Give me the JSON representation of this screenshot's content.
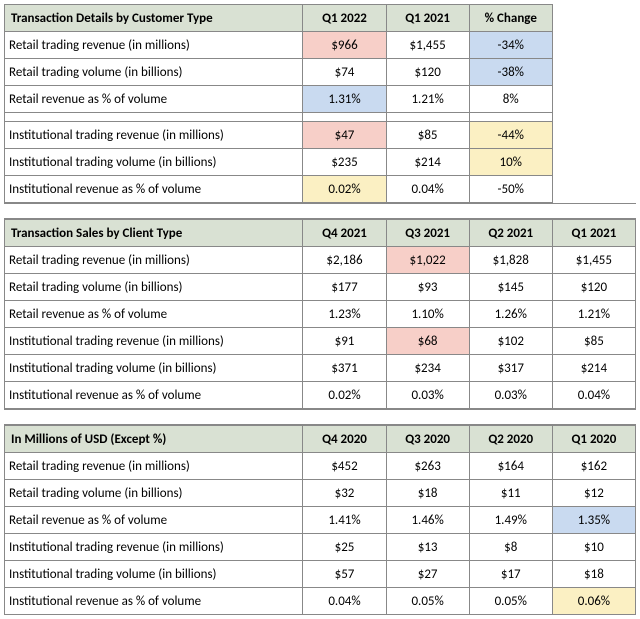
{
  "colors": {
    "header_bg": "#d9e1d3",
    "pink": "#f7cfc8",
    "blue": "#c9daf0",
    "yellow": "#fbf0c3",
    "border": "#888888"
  },
  "table1": {
    "header": [
      "Transaction Details by Customer Type",
      "Q1 2022",
      "Q1 2021",
      "% Change"
    ],
    "groups": [
      {
        "rows": [
          {
            "label": "Retail trading revenue (in millions)",
            "cells": [
              {
                "v": "$966",
                "hl": "pink"
              },
              {
                "v": "$1,455"
              },
              {
                "v": "-34%",
                "hl": "blue"
              }
            ]
          },
          {
            "label": "Retail trading volume (in billions)",
            "cells": [
              {
                "v": "$74"
              },
              {
                "v": "$120"
              },
              {
                "v": "-38%",
                "hl": "blue"
              }
            ]
          },
          {
            "label": "Retail revenue as % of volume",
            "cells": [
              {
                "v": "1.31%",
                "hl": "blue"
              },
              {
                "v": "1.21%"
              },
              {
                "v": "8%"
              }
            ]
          }
        ]
      },
      {
        "rows": [
          {
            "label": "Institutional trading revenue (in millions)",
            "cells": [
              {
                "v": "$47",
                "hl": "pink"
              },
              {
                "v": "$85"
              },
              {
                "v": "-44%",
                "hl": "yellow"
              }
            ]
          },
          {
            "label": "Institutional trading volume (in billions)",
            "cells": [
              {
                "v": "$235"
              },
              {
                "v": "$214"
              },
              {
                "v": "10%",
                "hl": "yellow"
              }
            ]
          },
          {
            "label": "Institutional revenue as % of volume",
            "cells": [
              {
                "v": "0.02%",
                "hl": "yellow"
              },
              {
                "v": "0.04%"
              },
              {
                "v": "-50%"
              }
            ]
          }
        ]
      }
    ]
  },
  "table2": {
    "header": [
      "Transaction Sales by Client Type",
      "Q4 2021",
      "Q3 2021",
      "Q2 2021",
      "Q1 2021"
    ],
    "rows": [
      {
        "label": "Retail trading revenue (in millions)",
        "cells": [
          {
            "v": "$2,186"
          },
          {
            "v": "$1,022",
            "hl": "pink"
          },
          {
            "v": "$1,828"
          },
          {
            "v": "$1,455"
          }
        ]
      },
      {
        "label": "Retail trading volume (in billions)",
        "cells": [
          {
            "v": "$177"
          },
          {
            "v": "$93"
          },
          {
            "v": "$145"
          },
          {
            "v": "$120"
          }
        ]
      },
      {
        "label": "Retail revenue as % of volume",
        "cells": [
          {
            "v": "1.23%"
          },
          {
            "v": "1.10%"
          },
          {
            "v": "1.26%"
          },
          {
            "v": "1.21%"
          }
        ]
      },
      {
        "label": "Institutional trading revenue (in millions)",
        "cells": [
          {
            "v": "$91"
          },
          {
            "v": "$68",
            "hl": "pink"
          },
          {
            "v": "$102"
          },
          {
            "v": "$85"
          }
        ]
      },
      {
        "label": "Institutional trading volume (in billions)",
        "cells": [
          {
            "v": "$371"
          },
          {
            "v": "$234"
          },
          {
            "v": "$317"
          },
          {
            "v": "$214"
          }
        ]
      },
      {
        "label": "Institutional revenue as % of volume",
        "cells": [
          {
            "v": "0.02%"
          },
          {
            "v": "0.03%"
          },
          {
            "v": "0.03%"
          },
          {
            "v": "0.04%"
          }
        ]
      }
    ]
  },
  "table3": {
    "header": [
      "In Millions of USD (Except %)",
      "Q4 2020",
      "Q3 2020",
      "Q2 2020",
      "Q1 2020"
    ],
    "rows": [
      {
        "label": "Retail trading revenue (in millions)",
        "cells": [
          {
            "v": "$452"
          },
          {
            "v": "$263"
          },
          {
            "v": "$164"
          },
          {
            "v": "$162"
          }
        ]
      },
      {
        "label": "Retail trading volume (in billions)",
        "cells": [
          {
            "v": "$32"
          },
          {
            "v": "$18"
          },
          {
            "v": "$11"
          },
          {
            "v": "$12"
          }
        ]
      },
      {
        "label": "Retail revenue as % of volume",
        "cells": [
          {
            "v": "1.41%"
          },
          {
            "v": "1.46%"
          },
          {
            "v": "1.49%"
          },
          {
            "v": "1.35%",
            "hl": "blue"
          }
        ]
      },
      {
        "label": "Institutional trading revenue (in millions)",
        "cells": [
          {
            "v": "$25"
          },
          {
            "v": "$13"
          },
          {
            "v": "$8"
          },
          {
            "v": "$10"
          }
        ]
      },
      {
        "label": "Institutional trading volume (in billions)",
        "cells": [
          {
            "v": "$57"
          },
          {
            "v": "$27"
          },
          {
            "v": "$17"
          },
          {
            "v": "$18"
          }
        ]
      },
      {
        "label": "Institutional revenue as % of volume",
        "cells": [
          {
            "v": "0.04%"
          },
          {
            "v": "0.05%"
          },
          {
            "v": "0.05%"
          },
          {
            "v": "0.06%",
            "hl": "yellow"
          }
        ]
      }
    ]
  }
}
